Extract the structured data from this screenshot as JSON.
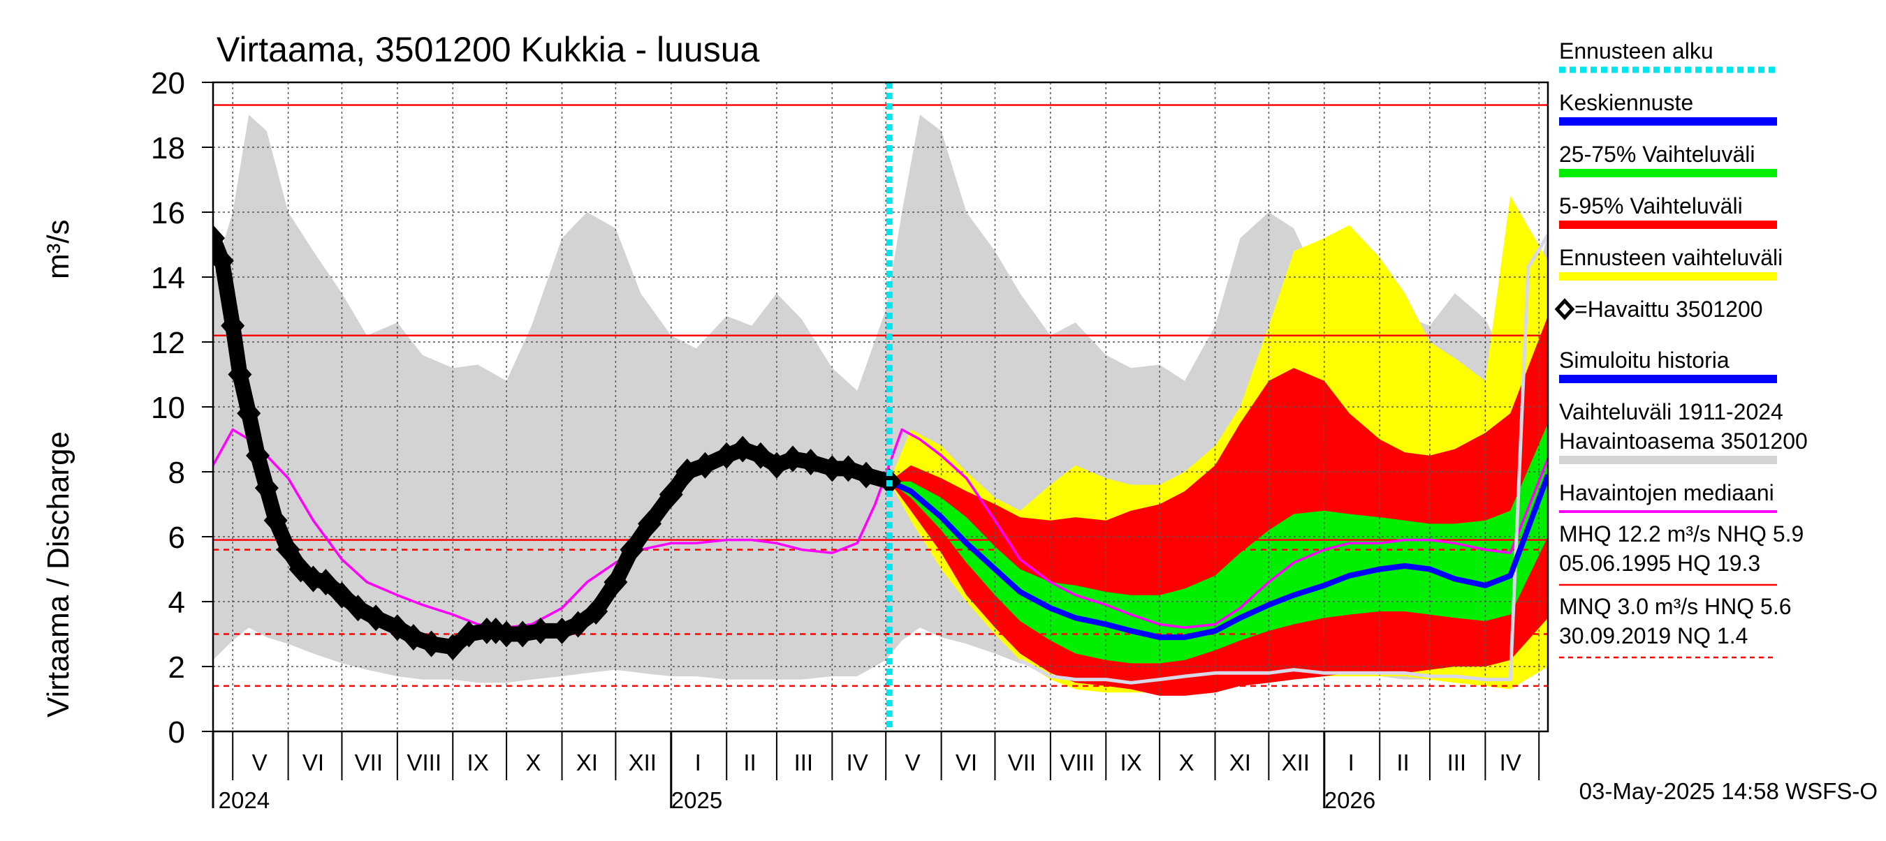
{
  "chart_data": {
    "type": "area",
    "title": "Virtaama, 3501200 Kukkia - luusua",
    "ylabel": "Virtaama / Discharge",
    "yunit": "m³/s",
    "ylim": [
      0,
      20
    ],
    "yticks": [
      "0",
      "2",
      "4",
      "6",
      "8",
      "10",
      "12",
      "14",
      "16",
      "18",
      "20"
    ],
    "x_start": "2024-04-20",
    "x_end": "2026-05-06",
    "month_labels": [
      {
        "label": "V",
        "date": "2024-05-16"
      },
      {
        "label": "VI",
        "date": "2024-06-15"
      },
      {
        "label": "VII",
        "date": "2024-07-16"
      },
      {
        "label": "VIII",
        "date": "2024-08-16"
      },
      {
        "label": "IX",
        "date": "2024-09-15"
      },
      {
        "label": "X",
        "date": "2024-10-16"
      },
      {
        "label": "XI",
        "date": "2024-11-15"
      },
      {
        "label": "XII",
        "date": "2024-12-16"
      },
      {
        "label": "I",
        "date": "2025-01-16"
      },
      {
        "label": "II",
        "date": "2025-02-14"
      },
      {
        "label": "III",
        "date": "2025-03-16"
      },
      {
        "label": "IV",
        "date": "2025-04-15"
      },
      {
        "label": "V",
        "date": "2025-05-16"
      },
      {
        "label": "VI",
        "date": "2025-06-15"
      },
      {
        "label": "VII",
        "date": "2025-07-16"
      },
      {
        "label": "VIII",
        "date": "2025-08-16"
      },
      {
        "label": "IX",
        "date": "2025-09-15"
      },
      {
        "label": "X",
        "date": "2025-10-16"
      },
      {
        "label": "XI",
        "date": "2025-11-15"
      },
      {
        "label": "XII",
        "date": "2025-12-16"
      },
      {
        "label": "I",
        "date": "2026-01-16"
      },
      {
        "label": "II",
        "date": "2026-02-14"
      },
      {
        "label": "III",
        "date": "2026-03-16"
      },
      {
        "label": "IV",
        "date": "2026-04-15"
      }
    ],
    "year_labels": [
      {
        "label": "2024",
        "date": "2024-04-23"
      },
      {
        "label": "2025",
        "date": "2025-01-01"
      },
      {
        "label": "2026",
        "date": "2026-01-01"
      }
    ],
    "forecast_start": "2025-05-03",
    "reference_lines": {
      "solid": [
        19.3,
        12.2,
        5.9
      ],
      "dashed": [
        5.6,
        3.0,
        1.4
      ]
    },
    "series": [
      {
        "name": "Vaihteluväli 1911-2024 Havaintoasema 3501200",
        "kind": "band",
        "color": "#d3d3d3",
        "x": [
          "2024-04-20",
          "2024-05-01",
          "2024-05-10",
          "2024-05-20",
          "2024-06-01",
          "2024-06-15",
          "2024-07-01",
          "2024-07-15",
          "2024-08-01",
          "2024-08-15",
          "2024-09-01",
          "2024-09-15",
          "2024-10-01",
          "2024-10-15",
          "2024-11-01",
          "2024-11-15",
          "2024-12-01",
          "2024-12-15",
          "2025-01-01",
          "2025-01-15",
          "2025-02-01",
          "2025-02-15",
          "2025-03-01",
          "2025-03-15",
          "2025-04-01",
          "2025-04-15",
          "2025-05-01",
          "2025-05-10",
          "2025-05-20",
          "2025-06-01",
          "2025-06-15",
          "2025-07-01",
          "2025-07-15",
          "2025-08-01",
          "2025-08-15",
          "2025-09-01",
          "2025-09-15",
          "2025-10-01",
          "2025-10-15",
          "2025-11-01",
          "2025-11-15",
          "2025-12-01",
          "2025-12-15",
          "2026-01-01",
          "2026-01-15",
          "2026-02-01",
          "2026-02-15",
          "2026-03-01",
          "2026-03-15",
          "2026-04-01",
          "2026-04-15",
          "2026-05-06"
        ],
        "low": [
          2.2,
          2.8,
          3.2,
          2.9,
          2.7,
          2.4,
          2.1,
          1.9,
          1.7,
          1.6,
          1.6,
          1.5,
          1.5,
          1.6,
          1.7,
          1.8,
          1.9,
          1.8,
          1.7,
          1.7,
          1.6,
          1.6,
          1.6,
          1.6,
          1.7,
          1.7,
          2.2,
          2.8,
          3.2,
          2.9,
          2.7,
          2.4,
          2.1,
          1.9,
          1.7,
          1.6,
          1.6,
          1.5,
          1.5,
          1.6,
          1.7,
          1.8,
          1.9,
          1.8,
          1.7,
          1.7,
          1.6,
          1.6,
          1.6,
          1.6,
          1.7,
          2.2
        ],
        "high": [
          14.0,
          16.0,
          19.0,
          18.5,
          16.0,
          14.8,
          13.5,
          12.2,
          12.6,
          11.6,
          11.2,
          11.3,
          10.8,
          12.5,
          15.2,
          16.0,
          15.5,
          13.5,
          12.2,
          11.8,
          12.8,
          12.5,
          13.5,
          12.7,
          11.2,
          10.5,
          13.0,
          16.0,
          19.0,
          18.5,
          16.0,
          14.8,
          13.5,
          12.2,
          12.6,
          11.6,
          11.2,
          11.3,
          10.8,
          12.5,
          15.2,
          16.0,
          15.5,
          13.5,
          12.2,
          11.8,
          12.8,
          12.5,
          13.5,
          12.7,
          11.2,
          15.3
        ]
      },
      {
        "name": "Ennusteen vaihteluväli",
        "kind": "band",
        "color": "#ffff00",
        "x": [
          "2025-05-03",
          "2025-05-15",
          "2025-06-01",
          "2025-06-15",
          "2025-07-01",
          "2025-07-15",
          "2025-08-01",
          "2025-08-15",
          "2025-09-01",
          "2025-09-15",
          "2025-10-01",
          "2025-10-15",
          "2025-11-01",
          "2025-11-15",
          "2025-12-01",
          "2025-12-15",
          "2026-01-01",
          "2026-01-15",
          "2026-02-01",
          "2026-02-15",
          "2026-03-01",
          "2026-03-15",
          "2026-04-01",
          "2026-04-15",
          "2026-05-06"
        ],
        "low": [
          7.7,
          6.5,
          5.0,
          4.0,
          3.0,
          2.2,
          1.6,
          1.3,
          1.2,
          1.2,
          1.2,
          1.3,
          1.4,
          1.5,
          1.6,
          1.6,
          1.7,
          1.7,
          1.7,
          1.7,
          1.6,
          1.5,
          1.4,
          1.3,
          2.0
        ],
        "high": [
          7.7,
          9.3,
          8.8,
          8.0,
          7.2,
          6.8,
          7.6,
          8.2,
          7.8,
          7.6,
          7.6,
          8.0,
          8.8,
          10.0,
          12.5,
          14.8,
          15.2,
          15.6,
          14.6,
          13.5,
          12.0,
          11.5,
          10.8,
          16.5,
          14.5
        ]
      },
      {
        "name": "5-95% Vaihteluväli",
        "kind": "band",
        "color": "#ff0000",
        "x": [
          "2025-05-03",
          "2025-05-15",
          "2025-06-01",
          "2025-06-15",
          "2025-07-01",
          "2025-07-15",
          "2025-08-01",
          "2025-08-15",
          "2025-09-01",
          "2025-09-15",
          "2025-10-01",
          "2025-10-15",
          "2025-11-01",
          "2025-11-15",
          "2025-12-01",
          "2025-12-15",
          "2026-01-01",
          "2026-01-15",
          "2026-02-01",
          "2026-02-15",
          "2026-03-01",
          "2026-03-15",
          "2026-04-01",
          "2026-04-15",
          "2026-05-06"
        ],
        "low": [
          7.7,
          6.8,
          5.5,
          4.2,
          3.2,
          2.4,
          1.8,
          1.5,
          1.4,
          1.3,
          1.1,
          1.1,
          1.2,
          1.4,
          1.5,
          1.6,
          1.7,
          1.8,
          1.8,
          1.8,
          1.9,
          2.0,
          2.0,
          2.2,
          3.5
        ],
        "high": [
          7.7,
          8.2,
          7.8,
          7.4,
          7.0,
          6.6,
          6.5,
          6.6,
          6.5,
          6.8,
          7.0,
          7.4,
          8.2,
          9.5,
          10.8,
          11.2,
          10.8,
          9.8,
          9.0,
          8.6,
          8.5,
          8.7,
          9.2,
          9.8,
          12.8
        ]
      },
      {
        "name": "25-75% Vaihteluväli",
        "kind": "band",
        "color": "#00ee00",
        "x": [
          "2025-05-03",
          "2025-05-15",
          "2025-06-01",
          "2025-06-15",
          "2025-07-01",
          "2025-07-15",
          "2025-08-01",
          "2025-08-15",
          "2025-09-01",
          "2025-09-15",
          "2025-10-01",
          "2025-10-15",
          "2025-11-01",
          "2025-11-15",
          "2025-12-01",
          "2025-12-15",
          "2026-01-01",
          "2026-01-15",
          "2026-02-01",
          "2026-02-15",
          "2026-03-01",
          "2026-03-15",
          "2026-04-01",
          "2026-04-15",
          "2026-05-06"
        ],
        "low": [
          7.7,
          7.2,
          6.2,
          5.2,
          4.2,
          3.4,
          2.8,
          2.4,
          2.2,
          2.1,
          2.1,
          2.2,
          2.5,
          2.8,
          3.1,
          3.3,
          3.5,
          3.6,
          3.7,
          3.7,
          3.6,
          3.5,
          3.4,
          3.6,
          6.0
        ],
        "high": [
          7.7,
          7.7,
          7.2,
          6.6,
          5.7,
          5.0,
          4.6,
          4.5,
          4.3,
          4.2,
          4.2,
          4.4,
          4.8,
          5.5,
          6.2,
          6.7,
          6.8,
          6.7,
          6.6,
          6.5,
          6.4,
          6.4,
          6.5,
          6.8,
          9.5
        ]
      },
      {
        "name": "Havaintojen mediaani",
        "kind": "line",
        "color": "#ff00ff",
        "x": [
          "2024-04-20",
          "2024-05-01",
          "2024-05-10",
          "2024-05-20",
          "2024-06-01",
          "2024-06-15",
          "2024-07-01",
          "2024-07-15",
          "2024-08-01",
          "2024-08-15",
          "2024-09-01",
          "2024-09-15",
          "2024-10-01",
          "2024-10-15",
          "2024-11-01",
          "2024-11-15",
          "2024-12-01",
          "2024-12-15",
          "2025-01-01",
          "2025-01-15",
          "2025-02-01",
          "2025-02-15",
          "2025-03-01",
          "2025-03-15",
          "2025-04-01",
          "2025-04-15",
          "2025-04-25",
          "2025-05-10",
          "2025-05-20",
          "2025-06-01",
          "2025-06-15",
          "2025-07-01",
          "2025-07-15",
          "2025-08-01",
          "2025-08-15",
          "2025-09-01",
          "2025-09-15",
          "2025-10-01",
          "2025-10-15",
          "2025-11-01",
          "2025-11-15",
          "2025-12-01",
          "2025-12-15",
          "2026-01-01",
          "2026-01-15",
          "2026-02-01",
          "2026-02-15",
          "2026-03-01",
          "2026-03-15",
          "2026-04-01",
          "2026-04-15",
          "2026-05-06"
        ],
        "y": [
          8.2,
          9.3,
          9.0,
          8.5,
          7.8,
          6.5,
          5.3,
          4.6,
          4.2,
          3.9,
          3.6,
          3.3,
          3.2,
          3.3,
          3.8,
          4.6,
          5.2,
          5.6,
          5.8,
          5.8,
          5.9,
          5.9,
          5.8,
          5.6,
          5.5,
          5.8,
          7.0,
          9.3,
          9.0,
          8.5,
          7.8,
          6.5,
          5.3,
          4.6,
          4.2,
          3.9,
          3.6,
          3.3,
          3.2,
          3.3,
          3.8,
          4.6,
          5.2,
          5.6,
          5.8,
          5.8,
          5.9,
          5.9,
          5.8,
          5.6,
          5.5,
          8.4
        ]
      },
      {
        "name": "Simuloitu historia",
        "kind": "line",
        "color": "#d8d8e8",
        "x": [
          "2025-07-15",
          "2025-08-01",
          "2025-08-15",
          "2025-09-01",
          "2025-09-15",
          "2025-10-01",
          "2025-10-15",
          "2025-11-01",
          "2025-11-15",
          "2025-12-01",
          "2025-12-15",
          "2026-01-01",
          "2026-01-15",
          "2026-02-01",
          "2026-02-15",
          "2026-03-01",
          "2026-03-15",
          "2026-04-01",
          "2026-04-15",
          "2026-04-25",
          "2026-05-06"
        ],
        "y": [
          2.2,
          1.7,
          1.6,
          1.6,
          1.5,
          1.6,
          1.7,
          1.8,
          1.8,
          1.8,
          1.9,
          1.8,
          1.8,
          1.8,
          1.8,
          1.7,
          1.7,
          1.6,
          1.6,
          14.3,
          15.3
        ]
      },
      {
        "name": "Keskiennuste",
        "kind": "line",
        "color": "#0000ff",
        "x": [
          "2025-05-03",
          "2025-05-15",
          "2025-06-01",
          "2025-06-15",
          "2025-07-01",
          "2025-07-15",
          "2025-08-01",
          "2025-08-15",
          "2025-09-01",
          "2025-09-15",
          "2025-10-01",
          "2025-10-15",
          "2025-11-01",
          "2025-11-15",
          "2025-12-01",
          "2025-12-15",
          "2026-01-01",
          "2026-01-15",
          "2026-02-01",
          "2026-02-15",
          "2026-03-01",
          "2026-03-15",
          "2026-04-01",
          "2026-04-15",
          "2026-05-06"
        ],
        "y": [
          7.7,
          7.4,
          6.6,
          5.8,
          5.0,
          4.3,
          3.8,
          3.5,
          3.3,
          3.1,
          2.9,
          2.9,
          3.1,
          3.5,
          3.9,
          4.2,
          4.5,
          4.8,
          5.0,
          5.1,
          5.0,
          4.7,
          4.5,
          4.8,
          7.9
        ]
      },
      {
        "name": "=Havaittu 3501200",
        "kind": "markers",
        "color": "#000000",
        "x": [
          "2024-04-20",
          "2024-04-25",
          "2024-05-01",
          "2024-05-05",
          "2024-05-10",
          "2024-05-15",
          "2024-05-20",
          "2024-05-25",
          "2024-06-01",
          "2024-06-08",
          "2024-06-15",
          "2024-06-22",
          "2024-07-01",
          "2024-07-10",
          "2024-07-20",
          "2024-08-01",
          "2024-08-10",
          "2024-08-20",
          "2024-09-01",
          "2024-09-10",
          "2024-09-20",
          "2024-09-25",
          "2024-10-01",
          "2024-10-10",
          "2024-10-20",
          "2024-11-01",
          "2024-11-10",
          "2024-11-20",
          "2024-12-01",
          "2024-12-10",
          "2024-12-20",
          "2025-01-01",
          "2025-01-10",
          "2025-01-20",
          "2025-02-01",
          "2025-02-10",
          "2025-02-20",
          "2025-03-01",
          "2025-03-10",
          "2025-03-20",
          "2025-04-01",
          "2025-04-10",
          "2025-04-20",
          "2025-05-03"
        ],
        "y": [
          15.2,
          14.5,
          12.5,
          11.0,
          9.8,
          8.5,
          7.5,
          6.5,
          5.6,
          5.0,
          4.7,
          4.6,
          4.2,
          3.8,
          3.5,
          3.2,
          2.9,
          2.7,
          2.6,
          3.0,
          3.1,
          3.1,
          3.0,
          3.0,
          3.1,
          3.1,
          3.3,
          3.7,
          4.6,
          5.6,
          6.4,
          7.3,
          8.0,
          8.2,
          8.5,
          8.7,
          8.5,
          8.2,
          8.4,
          8.3,
          8.1,
          8.1,
          7.9,
          7.7
        ]
      }
    ],
    "legend": {
      "placement": "right",
      "items": [
        {
          "label": "Ennusteen alku",
          "color": "#00e5ee",
          "style": "dotted"
        },
        {
          "label": "Keskiennuste",
          "color": "#0000ff",
          "style": "bar"
        },
        {
          "label": "25-75% Vaihteluväli",
          "color": "#00ee00",
          "style": "bar"
        },
        {
          "label": "5-95% Vaihteluväli",
          "color": "#ff0000",
          "style": "bar"
        },
        {
          "label": "Ennusteen vaihteluväli",
          "color": "#ffff00",
          "style": "bar"
        },
        {
          "label": "=Havaittu 3501200",
          "color": "#000000",
          "style": "marker"
        },
        {
          "label": "Simuloitu historia",
          "color": "#0000ff",
          "style": "bar"
        },
        {
          "label": "Vaihteluväli 1911-2024",
          "label2": " Havaintoasema 3501200",
          "color": "#d3d3d3",
          "style": "bar"
        },
        {
          "label": "Havaintojen mediaani",
          "color": "#ff00ff",
          "style": "thin"
        }
      ]
    },
    "stats": [
      {
        "line1": "MHQ 12.2 m³/s NHQ  5.9",
        "line2": "05.06.1995 HQ 19.3",
        "color": "#ff0000",
        "style": "solid"
      },
      {
        "line1": "MNQ  3.0 m³/s HNQ  5.6",
        "line2": "30.09.2019 NQ  1.4",
        "color": "#ff0000",
        "style": "dashed"
      }
    ],
    "footer": "03-May-2025 14:58 WSFS-O"
  }
}
